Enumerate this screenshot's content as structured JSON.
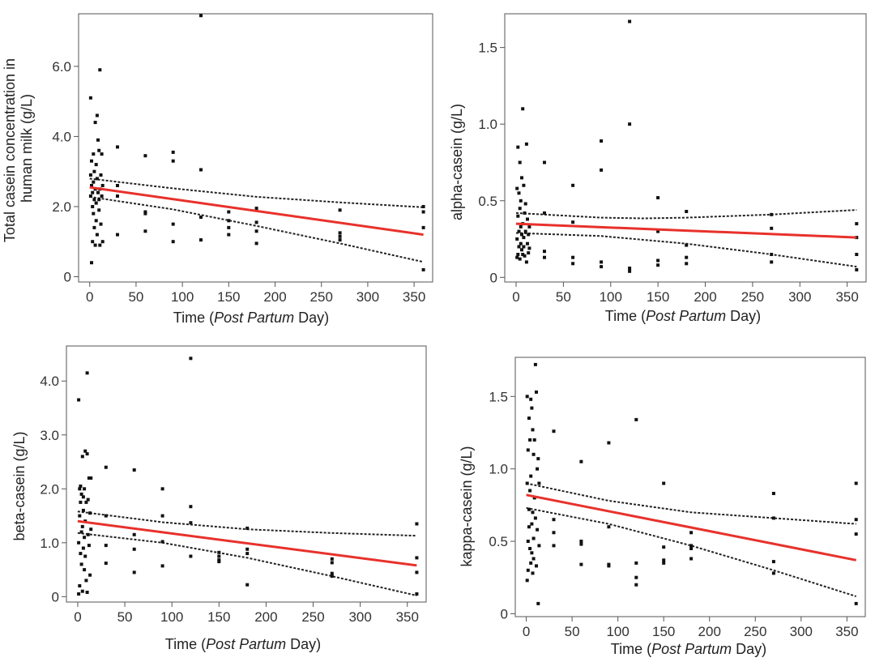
{
  "colors": {
    "fit_line": "#e8312b",
    "points": "#111111",
    "ci": "#222222"
  },
  "chart_data": [
    {
      "id": "total",
      "type": "scatter",
      "title": "",
      "ylabel_lines": [
        "Total casein concentration in",
        "human milk (g/L)"
      ],
      "xlabel": {
        "prefix": "Time (",
        "italic": "Post Partum",
        "suffix": " Day)"
      },
      "xlim": [
        -12,
        370
      ],
      "ylim": [
        -0.15,
        7.5
      ],
      "xticks": [
        0,
        50,
        100,
        150,
        200,
        250,
        300,
        350
      ],
      "yticks": [
        0,
        2,
        4,
        6
      ],
      "ytick_labels": [
        "0",
        "2.0",
        "4.0",
        "6.0"
      ],
      "fit": {
        "x": [
          0,
          360
        ],
        "y": [
          2.55,
          1.2
        ]
      },
      "ci_upper": {
        "x": [
          0,
          90,
          180,
          270,
          360
        ],
        "y": [
          2.8,
          2.52,
          2.28,
          2.12,
          1.98
        ]
      },
      "ci_lower": {
        "x": [
          0,
          90,
          180,
          270,
          360
        ],
        "y": [
          2.28,
          1.92,
          1.45,
          0.95,
          0.42
        ]
      },
      "points": [
        [
          1,
          2.3
        ],
        [
          1,
          2.9
        ],
        [
          1,
          5.1
        ],
        [
          2,
          0.4
        ],
        [
          2,
          2.6
        ],
        [
          2,
          3.3
        ],
        [
          3,
          1.0
        ],
        [
          3,
          2.0
        ],
        [
          3,
          2.4
        ],
        [
          4,
          3.5
        ],
        [
          4,
          1.8
        ],
        [
          4,
          2.7
        ],
        [
          5,
          2.2
        ],
        [
          5,
          3.0
        ],
        [
          5,
          1.4
        ],
        [
          6,
          4.4
        ],
        [
          6,
          2.5
        ],
        [
          6,
          0.9
        ],
        [
          7,
          2.1
        ],
        [
          7,
          3.2
        ],
        [
          7,
          1.6
        ],
        [
          8,
          4.6
        ],
        [
          8,
          2.8
        ],
        [
          8,
          1.2
        ],
        [
          9,
          2.4
        ],
        [
          9,
          3.9
        ],
        [
          10,
          1.9
        ],
        [
          10,
          2.2
        ],
        [
          10,
          3.6
        ],
        [
          11,
          5.9
        ],
        [
          11,
          0.9
        ],
        [
          11,
          2.5
        ],
        [
          12,
          2.9
        ],
        [
          12,
          1.5
        ],
        [
          13,
          2.3
        ],
        [
          13,
          3.5
        ],
        [
          14,
          2.6
        ],
        [
          14,
          1.0
        ],
        [
          30,
          3.7
        ],
        [
          30,
          2.6
        ],
        [
          30,
          2.3
        ],
        [
          30,
          1.2
        ],
        [
          60,
          3.45
        ],
        [
          60,
          1.85
        ],
        [
          60,
          1.8
        ],
        [
          60,
          1.3
        ],
        [
          90,
          3.55
        ],
        [
          90,
          3.3
        ],
        [
          90,
          1.5
        ],
        [
          90,
          1.0
        ],
        [
          120,
          7.45
        ],
        [
          120,
          3.05
        ],
        [
          120,
          1.7
        ],
        [
          120,
          1.05
        ],
        [
          150,
          1.85
        ],
        [
          150,
          1.6
        ],
        [
          150,
          1.4
        ],
        [
          150,
          1.2
        ],
        [
          180,
          1.95
        ],
        [
          180,
          1.55
        ],
        [
          180,
          1.3
        ],
        [
          180,
          0.95
        ],
        [
          270,
          1.9
        ],
        [
          270,
          1.25
        ],
        [
          270,
          1.15
        ],
        [
          270,
          1.05
        ],
        [
          360,
          2.0
        ],
        [
          360,
          1.85
        ],
        [
          360,
          1.4
        ],
        [
          360,
          0.2
        ]
      ]
    },
    {
      "id": "alpha",
      "type": "scatter",
      "title": "",
      "ylabel_lines": [
        "alpha-casein (g/L)"
      ],
      "xlabel": {
        "prefix": "Time (",
        "italic": "Post Partum",
        "suffix": " Day)"
      },
      "xlim": [
        -12,
        370
      ],
      "ylim": [
        -0.03,
        1.72
      ],
      "xticks": [
        0,
        50,
        100,
        150,
        200,
        250,
        300,
        350
      ],
      "yticks": [
        0,
        0.5,
        1.0,
        1.5
      ],
      "ytick_labels": [
        "0",
        "0.5",
        "1.0",
        "1.5"
      ],
      "fit": {
        "x": [
          0,
          360
        ],
        "y": [
          0.35,
          0.26
        ]
      },
      "ci_upper": {
        "x": [
          0,
          90,
          135,
          180,
          270,
          360
        ],
        "y": [
          0.42,
          0.39,
          0.385,
          0.39,
          0.41,
          0.44
        ]
      },
      "ci_lower": {
        "x": [
          0,
          90,
          180,
          270,
          360
        ],
        "y": [
          0.29,
          0.27,
          0.22,
          0.15,
          0.07
        ]
      },
      "points": [
        [
          1,
          0.58
        ],
        [
          1,
          0.25
        ],
        [
          1,
          0.13
        ],
        [
          2,
          0.85
        ],
        [
          2,
          0.4
        ],
        [
          2,
          0.15
        ],
        [
          3,
          0.3
        ],
        [
          3,
          0.2
        ],
        [
          3,
          0.55
        ],
        [
          4,
          0.75
        ],
        [
          4,
          0.12
        ],
        [
          4,
          0.45
        ],
        [
          5,
          0.22
        ],
        [
          5,
          0.33
        ],
        [
          5,
          0.5
        ],
        [
          6,
          0.65
        ],
        [
          6,
          0.28
        ],
        [
          6,
          0.18
        ],
        [
          7,
          1.1
        ],
        [
          7,
          0.35
        ],
        [
          7,
          0.15
        ],
        [
          8,
          0.6
        ],
        [
          8,
          0.26
        ],
        [
          8,
          0.2
        ],
        [
          9,
          0.42
        ],
        [
          9,
          0.14
        ],
        [
          10,
          0.3
        ],
        [
          10,
          0.48
        ],
        [
          11,
          0.87
        ],
        [
          11,
          0.1
        ],
        [
          12,
          0.38
        ],
        [
          12,
          0.22
        ],
        [
          13,
          0.16
        ],
        [
          13,
          0.28
        ],
        [
          14,
          0.19
        ],
        [
          14,
          0.33
        ],
        [
          30,
          0.75
        ],
        [
          30,
          0.42
        ],
        [
          30,
          0.17
        ],
        [
          30,
          0.13
        ],
        [
          60,
          0.6
        ],
        [
          60,
          0.36
        ],
        [
          60,
          0.13
        ],
        [
          60,
          0.09
        ],
        [
          90,
          0.89
        ],
        [
          90,
          0.7
        ],
        [
          90,
          0.1
        ],
        [
          90,
          0.07
        ],
        [
          120,
          1.67
        ],
        [
          120,
          1.0
        ],
        [
          120,
          0.06
        ],
        [
          120,
          0.04
        ],
        [
          150,
          0.52
        ],
        [
          150,
          0.3
        ],
        [
          150,
          0.11
        ],
        [
          150,
          0.08
        ],
        [
          180,
          0.43
        ],
        [
          180,
          0.21
        ],
        [
          180,
          0.13
        ],
        [
          180,
          0.09
        ],
        [
          270,
          0.41
        ],
        [
          270,
          0.32
        ],
        [
          270,
          0.15
        ],
        [
          270,
          0.1
        ],
        [
          360,
          0.35
        ],
        [
          360,
          0.26
        ],
        [
          360,
          0.15
        ],
        [
          360,
          0.05
        ]
      ]
    },
    {
      "id": "beta",
      "type": "scatter",
      "title": "",
      "ylabel_lines": [
        "beta-casein (g/L)"
      ],
      "xlabel": {
        "prefix": "Time (",
        "italic": "Post Partum",
        "suffix": " Day)"
      },
      "xlim": [
        -12,
        370
      ],
      "ylim": [
        -0.1,
        4.65
      ],
      "xticks": [
        0,
        50,
        100,
        150,
        200,
        250,
        300,
        350
      ],
      "yticks": [
        0,
        1,
        2,
        3,
        4
      ],
      "ytick_labels": [
        "0",
        "1.0",
        "2.0",
        "3.0",
        "4.0"
      ],
      "fit": {
        "x": [
          0,
          360
        ],
        "y": [
          1.4,
          0.58
        ]
      },
      "ci_upper": {
        "x": [
          0,
          90,
          180,
          270,
          360
        ],
        "y": [
          1.58,
          1.38,
          1.25,
          1.18,
          1.13
        ]
      },
      "ci_lower": {
        "x": [
          0,
          90,
          180,
          270,
          360
        ],
        "y": [
          1.18,
          1.0,
          0.72,
          0.38,
          0.02
        ]
      },
      "points": [
        [
          1,
          3.65
        ],
        [
          1,
          1.0
        ],
        [
          1,
          0.05
        ],
        [
          2,
          2.0
        ],
        [
          2,
          1.5
        ],
        [
          2,
          0.2
        ],
        [
          3,
          1.75
        ],
        [
          3,
          0.8
        ],
        [
          3,
          2.05
        ],
        [
          4,
          1.2
        ],
        [
          4,
          0.6
        ],
        [
          4,
          1.9
        ],
        [
          5,
          2.6
        ],
        [
          5,
          1.3
        ],
        [
          5,
          0.1
        ],
        [
          6,
          1.85
        ],
        [
          6,
          1.6
        ],
        [
          6,
          0.9
        ],
        [
          7,
          2.0
        ],
        [
          7,
          1.1
        ],
        [
          7,
          0.5
        ],
        [
          8,
          2.7
        ],
        [
          8,
          1.4
        ],
        [
          8,
          0.75
        ],
        [
          9,
          1.75
        ],
        [
          9,
          0.3
        ],
        [
          10,
          4.15
        ],
        [
          10,
          2.65
        ],
        [
          10,
          0.08
        ],
        [
          11,
          1.8
        ],
        [
          11,
          1.15
        ],
        [
          12,
          2.2
        ],
        [
          12,
          0.95
        ],
        [
          13,
          1.55
        ],
        [
          13,
          0.4
        ],
        [
          14,
          2.2
        ],
        [
          14,
          1.25
        ],
        [
          30,
          2.4
        ],
        [
          30,
          1.5
        ],
        [
          30,
          0.95
        ],
        [
          30,
          0.62
        ],
        [
          60,
          2.35
        ],
        [
          60,
          1.15
        ],
        [
          60,
          0.88
        ],
        [
          60,
          0.45
        ],
        [
          90,
          2.0
        ],
        [
          90,
          1.5
        ],
        [
          90,
          1.02
        ],
        [
          90,
          0.57
        ],
        [
          120,
          4.42
        ],
        [
          120,
          1.67
        ],
        [
          120,
          1.37
        ],
        [
          120,
          0.75
        ],
        [
          150,
          0.82
        ],
        [
          150,
          0.75
        ],
        [
          150,
          0.68
        ],
        [
          150,
          0.65
        ],
        [
          180,
          1.27
        ],
        [
          180,
          0.88
        ],
        [
          180,
          0.8
        ],
        [
          180,
          0.22
        ],
        [
          270,
          0.7
        ],
        [
          270,
          0.63
        ],
        [
          270,
          0.43
        ],
        [
          270,
          0.38
        ],
        [
          360,
          1.35
        ],
        [
          360,
          0.72
        ],
        [
          360,
          0.45
        ],
        [
          360,
          0.05
        ]
      ]
    },
    {
      "id": "kappa",
      "type": "scatter",
      "title": "",
      "ylabel_lines": [
        "kappa-casein (g/L)"
      ],
      "xlabel": {
        "prefix": "Time (",
        "italic": "Post Partum",
        "suffix": " Day)"
      },
      "xlim": [
        -12,
        370
      ],
      "ylim": [
        -0.02,
        1.77
      ],
      "xticks": [
        0,
        50,
        100,
        150,
        200,
        250,
        300,
        350
      ],
      "yticks": [
        0,
        0.5,
        1.0,
        1.5
      ],
      "ytick_labels": [
        "0",
        "0.5",
        "1.0",
        "1.5"
      ],
      "fit": {
        "x": [
          0,
          360
        ],
        "y": [
          0.82,
          0.37
        ]
      },
      "ci_upper": {
        "x": [
          0,
          90,
          180,
          270,
          360
        ],
        "y": [
          0.9,
          0.78,
          0.7,
          0.66,
          0.62
        ]
      },
      "ci_lower": {
        "x": [
          0,
          90,
          180,
          270,
          360
        ],
        "y": [
          0.73,
          0.62,
          0.47,
          0.3,
          0.12
        ]
      },
      "points": [
        [
          1,
          1.5
        ],
        [
          1,
          0.23
        ],
        [
          1,
          0.9
        ],
        [
          2,
          1.13
        ],
        [
          2,
          0.5
        ],
        [
          2,
          0.3
        ],
        [
          3,
          1.35
        ],
        [
          3,
          0.72
        ],
        [
          3,
          0.6
        ],
        [
          4,
          1.2
        ],
        [
          4,
          0.45
        ],
        [
          4,
          0.85
        ],
        [
          5,
          1.48
        ],
        [
          5,
          0.95
        ],
        [
          5,
          0.35
        ],
        [
          6,
          1.42
        ],
        [
          6,
          0.62
        ],
        [
          6,
          0.42
        ],
        [
          7,
          1.27
        ],
        [
          7,
          0.7
        ],
        [
          7,
          0.28
        ],
        [
          8,
          1.1
        ],
        [
          8,
          0.52
        ],
        [
          8,
          0.38
        ],
        [
          9,
          1.2
        ],
        [
          9,
          0.8
        ],
        [
          10,
          1.72
        ],
        [
          10,
          0.66
        ],
        [
          11,
          1.53
        ],
        [
          11,
          0.33
        ],
        [
          12,
          1.0
        ],
        [
          12,
          0.58
        ],
        [
          13,
          1.07
        ],
        [
          13,
          0.07
        ],
        [
          14,
          0.9
        ],
        [
          14,
          0.47
        ],
        [
          30,
          1.26
        ],
        [
          30,
          0.65
        ],
        [
          30,
          0.56
        ],
        [
          30,
          0.47
        ],
        [
          60,
          1.05
        ],
        [
          60,
          0.5
        ],
        [
          60,
          0.48
        ],
        [
          60,
          0.34
        ],
        [
          90,
          1.18
        ],
        [
          90,
          0.6
        ],
        [
          90,
          0.34
        ],
        [
          90,
          0.33
        ],
        [
          120,
          1.34
        ],
        [
          120,
          0.35
        ],
        [
          120,
          0.25
        ],
        [
          120,
          0.2
        ],
        [
          150,
          0.9
        ],
        [
          150,
          0.46
        ],
        [
          150,
          0.37
        ],
        [
          150,
          0.35
        ],
        [
          180,
          0.56
        ],
        [
          180,
          0.47
        ],
        [
          180,
          0.45
        ],
        [
          180,
          0.38
        ],
        [
          270,
          0.83
        ],
        [
          270,
          0.66
        ],
        [
          270,
          0.36
        ],
        [
          270,
          0.28
        ],
        [
          360,
          0.9
        ],
        [
          360,
          0.65
        ],
        [
          360,
          0.55
        ],
        [
          360,
          0.07
        ]
      ]
    }
  ]
}
